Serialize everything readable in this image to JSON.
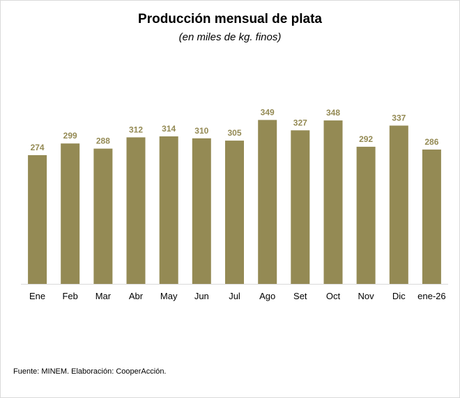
{
  "chart_data": {
    "type": "bar",
    "title": "Producción mensual de plata",
    "subtitle": "(en miles de kg. finos)",
    "categories": [
      "Ene",
      "Feb",
      "Mar",
      "Abr",
      "May",
      "Jun",
      "Jul",
      "Ago",
      "Set",
      "Oct",
      "Nov",
      "Dic",
      "ene-26"
    ],
    "values": [
      274,
      299,
      288,
      312,
      314,
      310,
      305,
      349,
      327,
      348,
      292,
      337,
      286
    ],
    "xlabel": "",
    "ylabel": "",
    "ylim": [
      0,
      400
    ],
    "grid": false,
    "legend": "none",
    "data_labels": true,
    "colors": {
      "bar": "#948A54",
      "label": "#948A54",
      "axis": "#d9d9d9",
      "tick_text": "#000000"
    }
  },
  "footer": {
    "source": "Fuente: MINEM. Elaboración: CooperAcción."
  }
}
